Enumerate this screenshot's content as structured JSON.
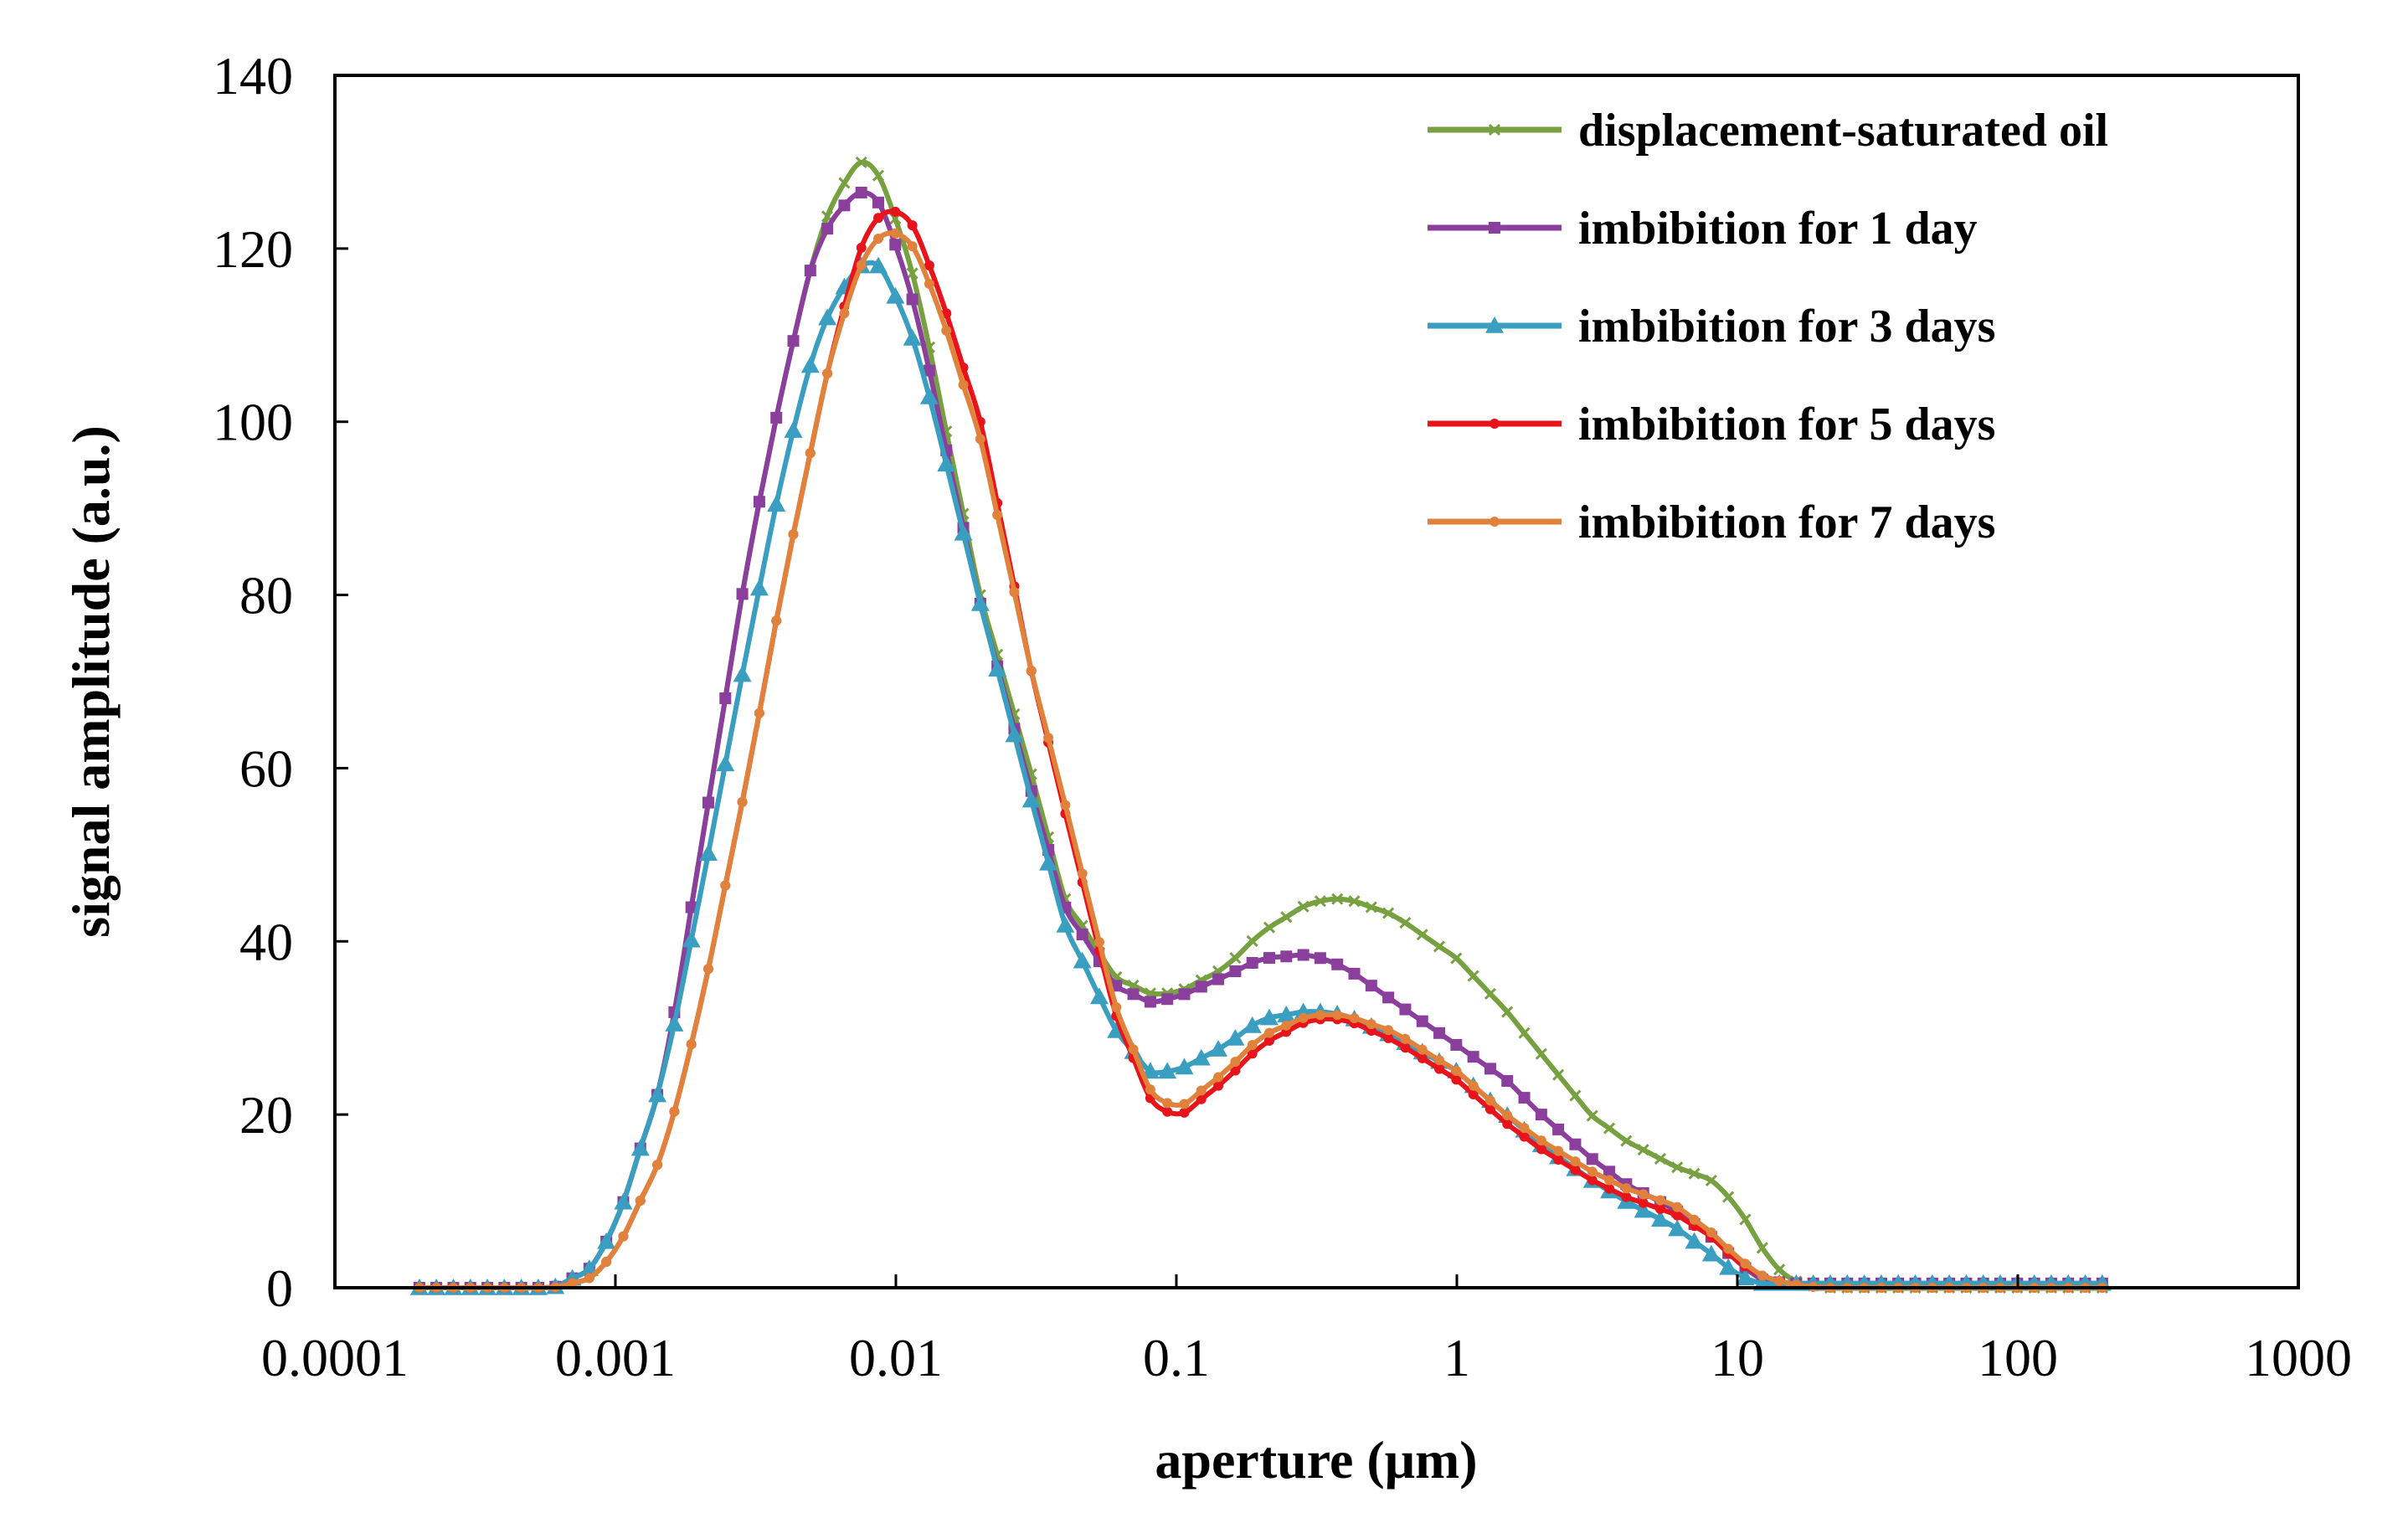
{
  "chart_data": {
    "type": "line",
    "title": "",
    "xlabel": "aperture (μm)",
    "ylabel": "signal amplitude (a.u.)",
    "xscale": "log",
    "xlim": [
      0.0001,
      1000
    ],
    "ylim": [
      0,
      140
    ],
    "xticks": [
      0.0001,
      0.001,
      0.01,
      0.1,
      1,
      10,
      100,
      1000
    ],
    "xtick_labels": [
      "0.0001",
      "0.001",
      "0.01",
      "0.1",
      "1",
      "10",
      "100",
      "1000"
    ],
    "yticks": [
      0,
      20,
      40,
      60,
      80,
      100,
      120,
      140
    ],
    "ytick_labels": [
      "0",
      "20",
      "40",
      "60",
      "80",
      "100",
      "120",
      "140"
    ],
    "grid": false,
    "legend_position": "top-right",
    "x_range": [
      0.0002,
      200
    ],
    "points_per_series": 100,
    "series": [
      {
        "name": "displacement-saturated oil",
        "color": "#77a040",
        "marker": "x",
        "profile": [
          [
            0.0002,
            0
          ],
          [
            0.0006,
            0
          ],
          [
            0.0008,
            2
          ],
          [
            0.001,
            7
          ],
          [
            0.0015,
            25
          ],
          [
            0.002,
            50
          ],
          [
            0.003,
            85
          ],
          [
            0.004,
            105
          ],
          [
            0.005,
            118
          ],
          [
            0.006,
            126
          ],
          [
            0.0075,
            130
          ],
          [
            0.009,
            128
          ],
          [
            0.012,
            115
          ],
          [
            0.016,
            95
          ],
          [
            0.02,
            80
          ],
          [
            0.03,
            60
          ],
          [
            0.04,
            45
          ],
          [
            0.06,
            36
          ],
          [
            0.08,
            34
          ],
          [
            0.1,
            34
          ],
          [
            0.15,
            37
          ],
          [
            0.2,
            41
          ],
          [
            0.3,
            44.5
          ],
          [
            0.4,
            45
          ],
          [
            0.6,
            43
          ],
          [
            1,
            38
          ],
          [
            1.5,
            32
          ],
          [
            2,
            27
          ],
          [
            3,
            20
          ],
          [
            4,
            17
          ],
          [
            6,
            14
          ],
          [
            8,
            12.5
          ],
          [
            10,
            9.5
          ],
          [
            12,
            5
          ],
          [
            15,
            1
          ],
          [
            20,
            0
          ],
          [
            200,
            0
          ]
        ]
      },
      {
        "name": "imbibition for 1 day",
        "color": "#8b3f9c",
        "marker": "square",
        "profile": [
          [
            0.0002,
            0
          ],
          [
            0.0006,
            0
          ],
          [
            0.0008,
            2
          ],
          [
            0.001,
            7
          ],
          [
            0.0015,
            25
          ],
          [
            0.002,
            50
          ],
          [
            0.003,
            85
          ],
          [
            0.004,
            105
          ],
          [
            0.005,
            118
          ],
          [
            0.006,
            124
          ],
          [
            0.0075,
            126.5
          ],
          [
            0.009,
            125
          ],
          [
            0.012,
            112
          ],
          [
            0.016,
            93
          ],
          [
            0.02,
            79
          ],
          [
            0.03,
            58
          ],
          [
            0.04,
            44
          ],
          [
            0.06,
            35
          ],
          [
            0.08,
            33
          ],
          [
            0.1,
            33.5
          ],
          [
            0.15,
            36
          ],
          [
            0.2,
            38
          ],
          [
            0.3,
            38.5
          ],
          [
            0.4,
            37
          ],
          [
            0.6,
            33
          ],
          [
            1,
            28
          ],
          [
            1.5,
            24
          ],
          [
            2,
            20
          ],
          [
            3,
            15
          ],
          [
            4,
            12
          ],
          [
            6,
            9
          ],
          [
            8,
            6
          ],
          [
            10,
            3
          ],
          [
            12,
            1
          ],
          [
            15,
            0.5
          ],
          [
            20,
            0.5
          ],
          [
            200,
            0.5
          ]
        ]
      },
      {
        "name": "imbibition for 3 days",
        "color": "#3a9ec1",
        "marker": "triangle",
        "profile": [
          [
            0.0002,
            0
          ],
          [
            0.0006,
            0
          ],
          [
            0.0008,
            2
          ],
          [
            0.001,
            7
          ],
          [
            0.0015,
            25
          ],
          [
            0.002,
            45
          ],
          [
            0.003,
            75
          ],
          [
            0.004,
            95
          ],
          [
            0.005,
            107
          ],
          [
            0.006,
            114
          ],
          [
            0.0075,
            118
          ],
          [
            0.009,
            118
          ],
          [
            0.012,
            108
          ],
          [
            0.016,
            92
          ],
          [
            0.02,
            79
          ],
          [
            0.03,
            57
          ],
          [
            0.04,
            42
          ],
          [
            0.06,
            30
          ],
          [
            0.08,
            25
          ],
          [
            0.1,
            25
          ],
          [
            0.15,
            28
          ],
          [
            0.2,
            31
          ],
          [
            0.3,
            32
          ],
          [
            0.4,
            31.5
          ],
          [
            0.6,
            29
          ],
          [
            1,
            25
          ],
          [
            1.5,
            20
          ],
          [
            2,
            16.5
          ],
          [
            3,
            12.5
          ],
          [
            4,
            10
          ],
          [
            6,
            7
          ],
          [
            8,
            4
          ],
          [
            10,
            1.5
          ],
          [
            12,
            0.5
          ],
          [
            15,
            0.5
          ],
          [
            20,
            0.5
          ],
          [
            200,
            0.5
          ]
        ]
      },
      {
        "name": "imbibition for 5 days",
        "color": "#e8141b",
        "marker": "dot",
        "profile": [
          [
            0.0002,
            0
          ],
          [
            0.0006,
            0
          ],
          [
            0.0008,
            1
          ],
          [
            0.001,
            4
          ],
          [
            0.0015,
            16
          ],
          [
            0.002,
            32
          ],
          [
            0.003,
            60
          ],
          [
            0.004,
            82
          ],
          [
            0.005,
            97
          ],
          [
            0.006,
            109
          ],
          [
            0.0075,
            120
          ],
          [
            0.009,
            124.5
          ],
          [
            0.011,
            124
          ],
          [
            0.014,
            116
          ],
          [
            0.02,
            100
          ],
          [
            0.025,
            85
          ],
          [
            0.03,
            72
          ],
          [
            0.04,
            55
          ],
          [
            0.06,
            32
          ],
          [
            0.08,
            22
          ],
          [
            0.1,
            19.5
          ],
          [
            0.15,
            24
          ],
          [
            0.2,
            28
          ],
          [
            0.3,
            31
          ],
          [
            0.4,
            31
          ],
          [
            0.6,
            28.5
          ],
          [
            1,
            24
          ],
          [
            1.5,
            19
          ],
          [
            2,
            16
          ],
          [
            3,
            12.5
          ],
          [
            4,
            10.5
          ],
          [
            6,
            8.5
          ],
          [
            8,
            6
          ],
          [
            10,
            3
          ],
          [
            12,
            1.5
          ],
          [
            15,
            0.5
          ],
          [
            20,
            0
          ],
          [
            200,
            0
          ]
        ]
      },
      {
        "name": "imbibition for 7 days",
        "color": "#e1823c",
        "marker": "dot",
        "profile": [
          [
            0.0002,
            0
          ],
          [
            0.0006,
            0
          ],
          [
            0.0008,
            1
          ],
          [
            0.001,
            4
          ],
          [
            0.0015,
            16
          ],
          [
            0.002,
            32
          ],
          [
            0.003,
            60
          ],
          [
            0.004,
            82
          ],
          [
            0.005,
            97
          ],
          [
            0.006,
            109
          ],
          [
            0.0075,
            118
          ],
          [
            0.009,
            122
          ],
          [
            0.011,
            121.5
          ],
          [
            0.014,
            114
          ],
          [
            0.02,
            98
          ],
          [
            0.025,
            84
          ],
          [
            0.03,
            72
          ],
          [
            0.04,
            56
          ],
          [
            0.06,
            33
          ],
          [
            0.08,
            23
          ],
          [
            0.1,
            20.5
          ],
          [
            0.15,
            25
          ],
          [
            0.2,
            29
          ],
          [
            0.3,
            31.5
          ],
          [
            0.4,
            31.5
          ],
          [
            0.6,
            29.5
          ],
          [
            1,
            25
          ],
          [
            1.5,
            20
          ],
          [
            2,
            17
          ],
          [
            3,
            13.5
          ],
          [
            4,
            11.5
          ],
          [
            6,
            9.5
          ],
          [
            8,
            6.5
          ],
          [
            10,
            3.5
          ],
          [
            12,
            1.5
          ],
          [
            15,
            0.5
          ],
          [
            20,
            0
          ],
          [
            200,
            0
          ]
        ]
      }
    ]
  }
}
